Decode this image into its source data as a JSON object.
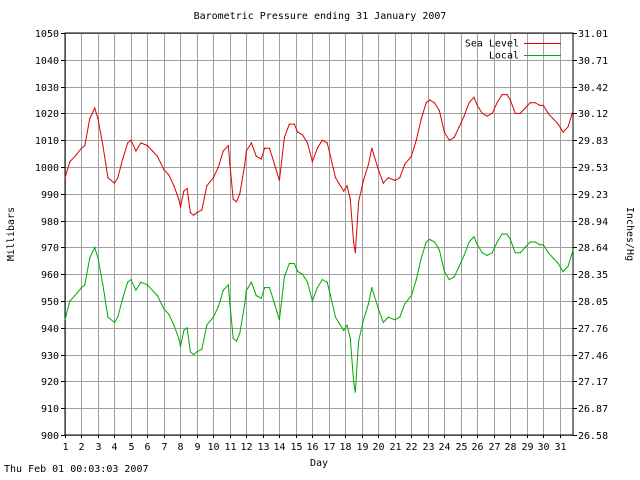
{
  "footer": "Thu Feb 01 00:03:03 2007",
  "chart_data": {
    "type": "line",
    "title": "Barometric Pressure ending 31 January 2007",
    "xlabel": "Day",
    "ylabel": "Millibars",
    "y2label": "Inches/Hg",
    "xlim": [
      1,
      31.8
    ],
    "ylim": [
      900,
      1050
    ],
    "grid": true,
    "legend_position": "top-right",
    "x_ticks": [
      "1",
      "2",
      "3",
      "4",
      "5",
      "6",
      "7",
      "8",
      "9",
      "10",
      "11",
      "12",
      "13",
      "14",
      "15",
      "16",
      "17",
      "18",
      "19",
      "20",
      "21",
      "22",
      "23",
      "24",
      "25",
      "26",
      "27",
      "28",
      "29",
      "30",
      "31"
    ],
    "y_ticks": [
      "900",
      "910",
      "920",
      "930",
      "940",
      "950",
      "960",
      "970",
      "980",
      "990",
      "1000",
      "1010",
      "1020",
      "1030",
      "1040",
      "1050"
    ],
    "y2_ticks": [
      "26.58",
      "26.87",
      "27.17",
      "27.46",
      "27.76",
      "28.05",
      "28.35",
      "28.64",
      "28.94",
      "29.23",
      "29.53",
      "29.83",
      "30.12",
      "30.42",
      "30.71",
      "31.01"
    ],
    "series": [
      {
        "name": "Sea Level",
        "color": "#dd0000",
        "x": [
          1.0,
          1.3,
          1.6,
          2.0,
          2.2,
          2.5,
          2.8,
          3.0,
          3.3,
          3.6,
          4.0,
          4.2,
          4.5,
          4.8,
          5.0,
          5.3,
          5.6,
          6.0,
          6.3,
          6.6,
          7.0,
          7.3,
          7.6,
          7.9,
          8.0,
          8.2,
          8.4,
          8.6,
          8.8,
          9.0,
          9.3,
          9.6,
          10.0,
          10.3,
          10.6,
          10.9,
          11.0,
          11.2,
          11.4,
          11.6,
          11.9,
          12.0,
          12.3,
          12.6,
          12.9,
          13.1,
          13.4,
          13.7,
          14.0,
          14.3,
          14.6,
          14.9,
          15.1,
          15.4,
          15.7,
          16.0,
          16.3,
          16.6,
          16.9,
          17.1,
          17.4,
          17.7,
          17.9,
          18.1,
          18.3,
          18.5,
          18.6,
          18.8,
          19.1,
          19.4,
          19.6,
          20.0,
          20.3,
          20.6,
          21.0,
          21.3,
          21.6,
          22.0,
          22.3,
          22.6,
          22.9,
          23.1,
          23.4,
          23.7,
          24.0,
          24.3,
          24.6,
          24.9,
          25.2,
          25.5,
          25.8,
          26.0,
          26.3,
          26.6,
          26.9,
          27.2,
          27.5,
          27.8,
          28.0,
          28.3,
          28.6,
          28.9,
          29.2,
          29.5,
          29.8,
          30.0,
          30.3,
          30.6,
          30.9,
          31.2,
          31.5,
          31.8
        ],
        "values": [
          996,
          1002,
          1004,
          1007,
          1008,
          1018,
          1022,
          1018,
          1008,
          996,
          994,
          996,
          1003,
          1009,
          1010,
          1006,
          1009,
          1008,
          1006,
          1004,
          999,
          997,
          993,
          988,
          985,
          991,
          992,
          983,
          982,
          983,
          984,
          993,
          996,
          1000,
          1006,
          1008,
          1001,
          988,
          987,
          990,
          1001,
          1006,
          1009,
          1004,
          1003,
          1007,
          1007,
          1001,
          995,
          1011,
          1016,
          1016,
          1013,
          1012,
          1009,
          1002,
          1007,
          1010,
          1009,
          1004,
          996,
          993,
          991,
          993,
          988,
          972,
          968,
          987,
          995,
          1001,
          1007,
          999,
          994,
          996,
          995,
          996,
          1001,
          1004,
          1010,
          1018,
          1024,
          1025,
          1024,
          1021,
          1013,
          1010,
          1011,
          1015,
          1019,
          1024,
          1026,
          1023,
          1020,
          1019,
          1020,
          1024,
          1027,
          1027,
          1025,
          1020,
          1020,
          1022,
          1024,
          1024,
          1023,
          1023,
          1020,
          1018,
          1016,
          1013,
          1015,
          1021
        ]
      },
      {
        "name": "Local",
        "color": "#00aa00",
        "x": [
          1.0,
          1.3,
          1.6,
          2.0,
          2.2,
          2.5,
          2.8,
          3.0,
          3.3,
          3.6,
          4.0,
          4.2,
          4.5,
          4.8,
          5.0,
          5.3,
          5.6,
          6.0,
          6.3,
          6.6,
          7.0,
          7.3,
          7.6,
          7.9,
          8.0,
          8.2,
          8.4,
          8.6,
          8.8,
          9.0,
          9.3,
          9.6,
          10.0,
          10.3,
          10.6,
          10.9,
          11.0,
          11.2,
          11.4,
          11.6,
          11.9,
          12.0,
          12.3,
          12.6,
          12.9,
          13.1,
          13.4,
          13.7,
          14.0,
          14.3,
          14.6,
          14.9,
          15.1,
          15.4,
          15.7,
          16.0,
          16.3,
          16.6,
          16.9,
          17.1,
          17.4,
          17.7,
          17.9,
          18.1,
          18.3,
          18.5,
          18.6,
          18.8,
          19.1,
          19.4,
          19.6,
          20.0,
          20.3,
          20.6,
          21.0,
          21.3,
          21.6,
          22.0,
          22.3,
          22.6,
          22.9,
          23.1,
          23.4,
          23.7,
          24.0,
          24.3,
          24.6,
          24.9,
          25.2,
          25.5,
          25.8,
          26.0,
          26.3,
          26.6,
          26.9,
          27.2,
          27.5,
          27.8,
          28.0,
          28.3,
          28.6,
          28.9,
          29.2,
          29.5,
          29.8,
          30.0,
          30.3,
          30.6,
          30.9,
          31.2,
          31.5,
          31.8
        ],
        "values": [
          943,
          950,
          952,
          955,
          956,
          966,
          970,
          966,
          956,
          944,
          942,
          944,
          951,
          957,
          958,
          954,
          957,
          956,
          954,
          952,
          947,
          945,
          941,
          936,
          933,
          939,
          940,
          931,
          930,
          931,
          932,
          941,
          944,
          948,
          954,
          956,
          949,
          936,
          935,
          938,
          949,
          954,
          957,
          952,
          951,
          955,
          955,
          949,
          943,
          959,
          964,
          964,
          961,
          960,
          957,
          950,
          955,
          958,
          957,
          952,
          944,
          941,
          939,
          941,
          936,
          920,
          916,
          935,
          943,
          949,
          955,
          947,
          942,
          944,
          943,
          944,
          949,
          952,
          958,
          966,
          972,
          973,
          972,
          969,
          961,
          958,
          959,
          963,
          967,
          972,
          974,
          971,
          968,
          967,
          968,
          972,
          975,
          975,
          973,
          968,
          968,
          970,
          972,
          972,
          971,
          971,
          968,
          966,
          964,
          961,
          963,
          969
        ]
      }
    ]
  }
}
